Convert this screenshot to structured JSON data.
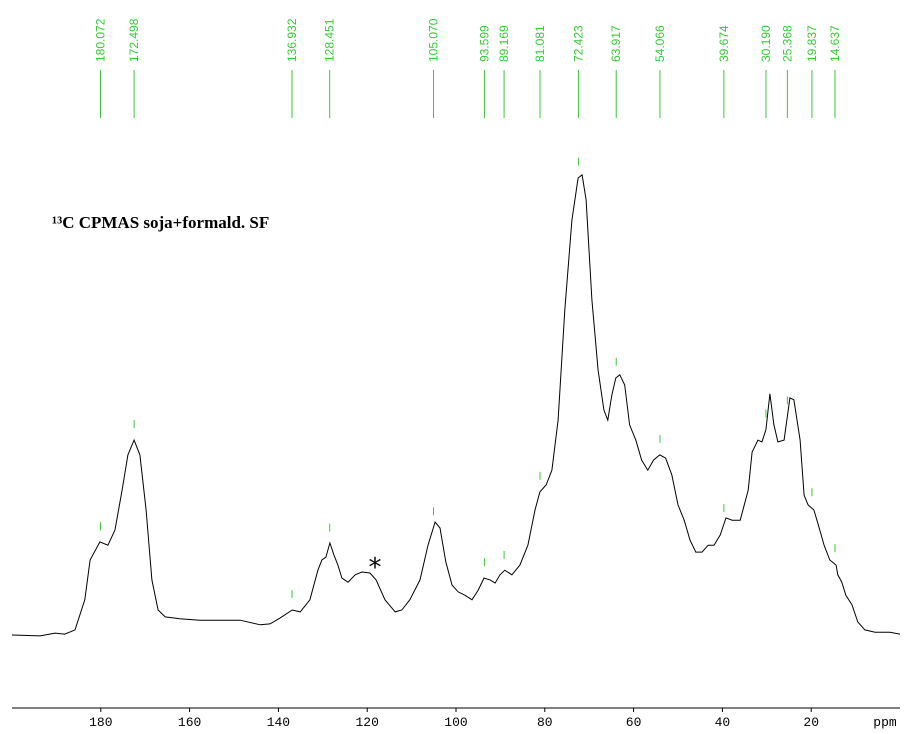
{
  "chart_data": {
    "type": "line",
    "title": "¹³C CPMAS soja+formald. SF",
    "xlabel": "ppm",
    "annotations": [
      {
        "text": "*"
      }
    ],
    "color": "#000000",
    "peak_color": "#33cc33",
    "xlim": [
      200,
      0
    ],
    "xticks": [
      180,
      160,
      140,
      120,
      100,
      80,
      60,
      40,
      20
    ],
    "ylim": [
      0,
      100
    ],
    "peaks": {
      "values": [
        180.072,
        172.498,
        136.932,
        128.451,
        105.07,
        93.599,
        89.169,
        81.081,
        72.423,
        63.917,
        54.066,
        39.674,
        30.19,
        25.368,
        19.837,
        14.637
      ],
      "value_labels": [
        "180.072",
        "172.498",
        "136.932",
        "128.451",
        "105.070",
        "93.599",
        "89.169",
        "81.081",
        "72.423",
        "63.917",
        "54.066",
        "39.674",
        "30.190",
        "25.368",
        "19.837",
        "14.637"
      ]
    },
    "x": [
      200.0,
      193.7,
      190.3,
      188.1,
      185.8,
      183.6,
      182.4,
      180.2,
      178.4,
      176.8,
      175.2,
      173.9,
      172.5,
      171.2,
      169.8,
      168.5,
      167.1,
      165.5,
      162.2,
      157.7,
      153.2,
      148.6,
      144.1,
      141.9,
      139.6,
      136.9,
      135.1,
      132.9,
      131.1,
      130.2,
      129.3,
      128.4,
      127.5,
      126.6,
      125.7,
      124.3,
      122.7,
      121.2,
      119.4,
      118.0,
      116.0,
      113.7,
      112.2,
      110.4,
      108.1,
      106.3,
      104.7,
      103.6,
      102.3,
      100.9,
      99.5,
      98.0,
      96.4,
      95.0,
      93.7,
      92.3,
      91.2,
      90.1,
      89.0,
      87.4,
      85.6,
      83.8,
      82.2,
      81.1,
      79.7,
      78.4,
      77.0,
      75.5,
      73.9,
      72.5,
      71.6,
      70.7,
      69.4,
      68.0,
      66.7,
      65.8,
      64.9,
      64.0,
      63.1,
      62.0,
      60.9,
      59.5,
      58.2,
      56.8,
      55.5,
      54.1,
      52.8,
      51.4,
      50.0,
      48.6,
      47.3,
      46.0,
      44.6,
      43.2,
      41.9,
      40.5,
      39.2,
      37.8,
      36.0,
      34.2,
      33.3,
      32.0,
      31.1,
      30.2,
      29.3,
      28.4,
      27.5,
      26.1,
      24.8,
      23.9,
      22.5,
      21.6,
      20.7,
      19.4,
      18.4,
      17.1,
      15.8,
      14.4,
      14.0,
      13.1,
      12.2,
      10.8,
      9.5,
      7.9,
      5.6,
      2.3,
      0.0
    ],
    "values": [
      0,
      -0.2,
      0.4,
      0.2,
      1.1,
      7.6,
      16.2,
      20.1,
      19.4,
      22.7,
      31.3,
      38.9,
      42.1,
      38.9,
      27.0,
      11.9,
      5.4,
      3.9,
      3.5,
      3.2,
      3.2,
      3.2,
      2.2,
      2.4,
      3.7,
      5.4,
      5.0,
      7.6,
      14.0,
      16.2,
      16.8,
      19.9,
      17.3,
      15.1,
      12.3,
      11.4,
      13.0,
      13.6,
      13.4,
      11.9,
      7.6,
      5.0,
      5.4,
      7.6,
      11.9,
      19.4,
      24.4,
      23.1,
      15.8,
      10.8,
      9.3,
      8.6,
      7.6,
      9.7,
      12.3,
      11.9,
      11.2,
      13.0,
      14.0,
      13.0,
      15.1,
      19.4,
      27.0,
      30.9,
      32.4,
      35.6,
      46.4,
      70.2,
      89.6,
      98.7,
      99.4,
      94.0,
      72.4,
      57.2,
      48.6,
      46.4,
      51.8,
      55.5,
      56.2,
      54.0,
      45.4,
      42.1,
      37.8,
      35.6,
      37.8,
      38.9,
      38.2,
      34.6,
      28.1,
      24.8,
      20.5,
      17.9,
      17.9,
      19.4,
      19.4,
      21.6,
      25.3,
      24.8,
      24.8,
      31.3,
      39.5,
      42.1,
      41.7,
      44.3,
      52.1,
      45.4,
      41.7,
      42.1,
      51.2,
      50.8,
      42.1,
      30.2,
      28.1,
      27.0,
      23.8,
      19.4,
      16.2,
      15.1,
      13.0,
      11.4,
      8.6,
      6.5,
      2.8,
      1.1,
      0.6,
      0.6,
      0.2
    ]
  }
}
